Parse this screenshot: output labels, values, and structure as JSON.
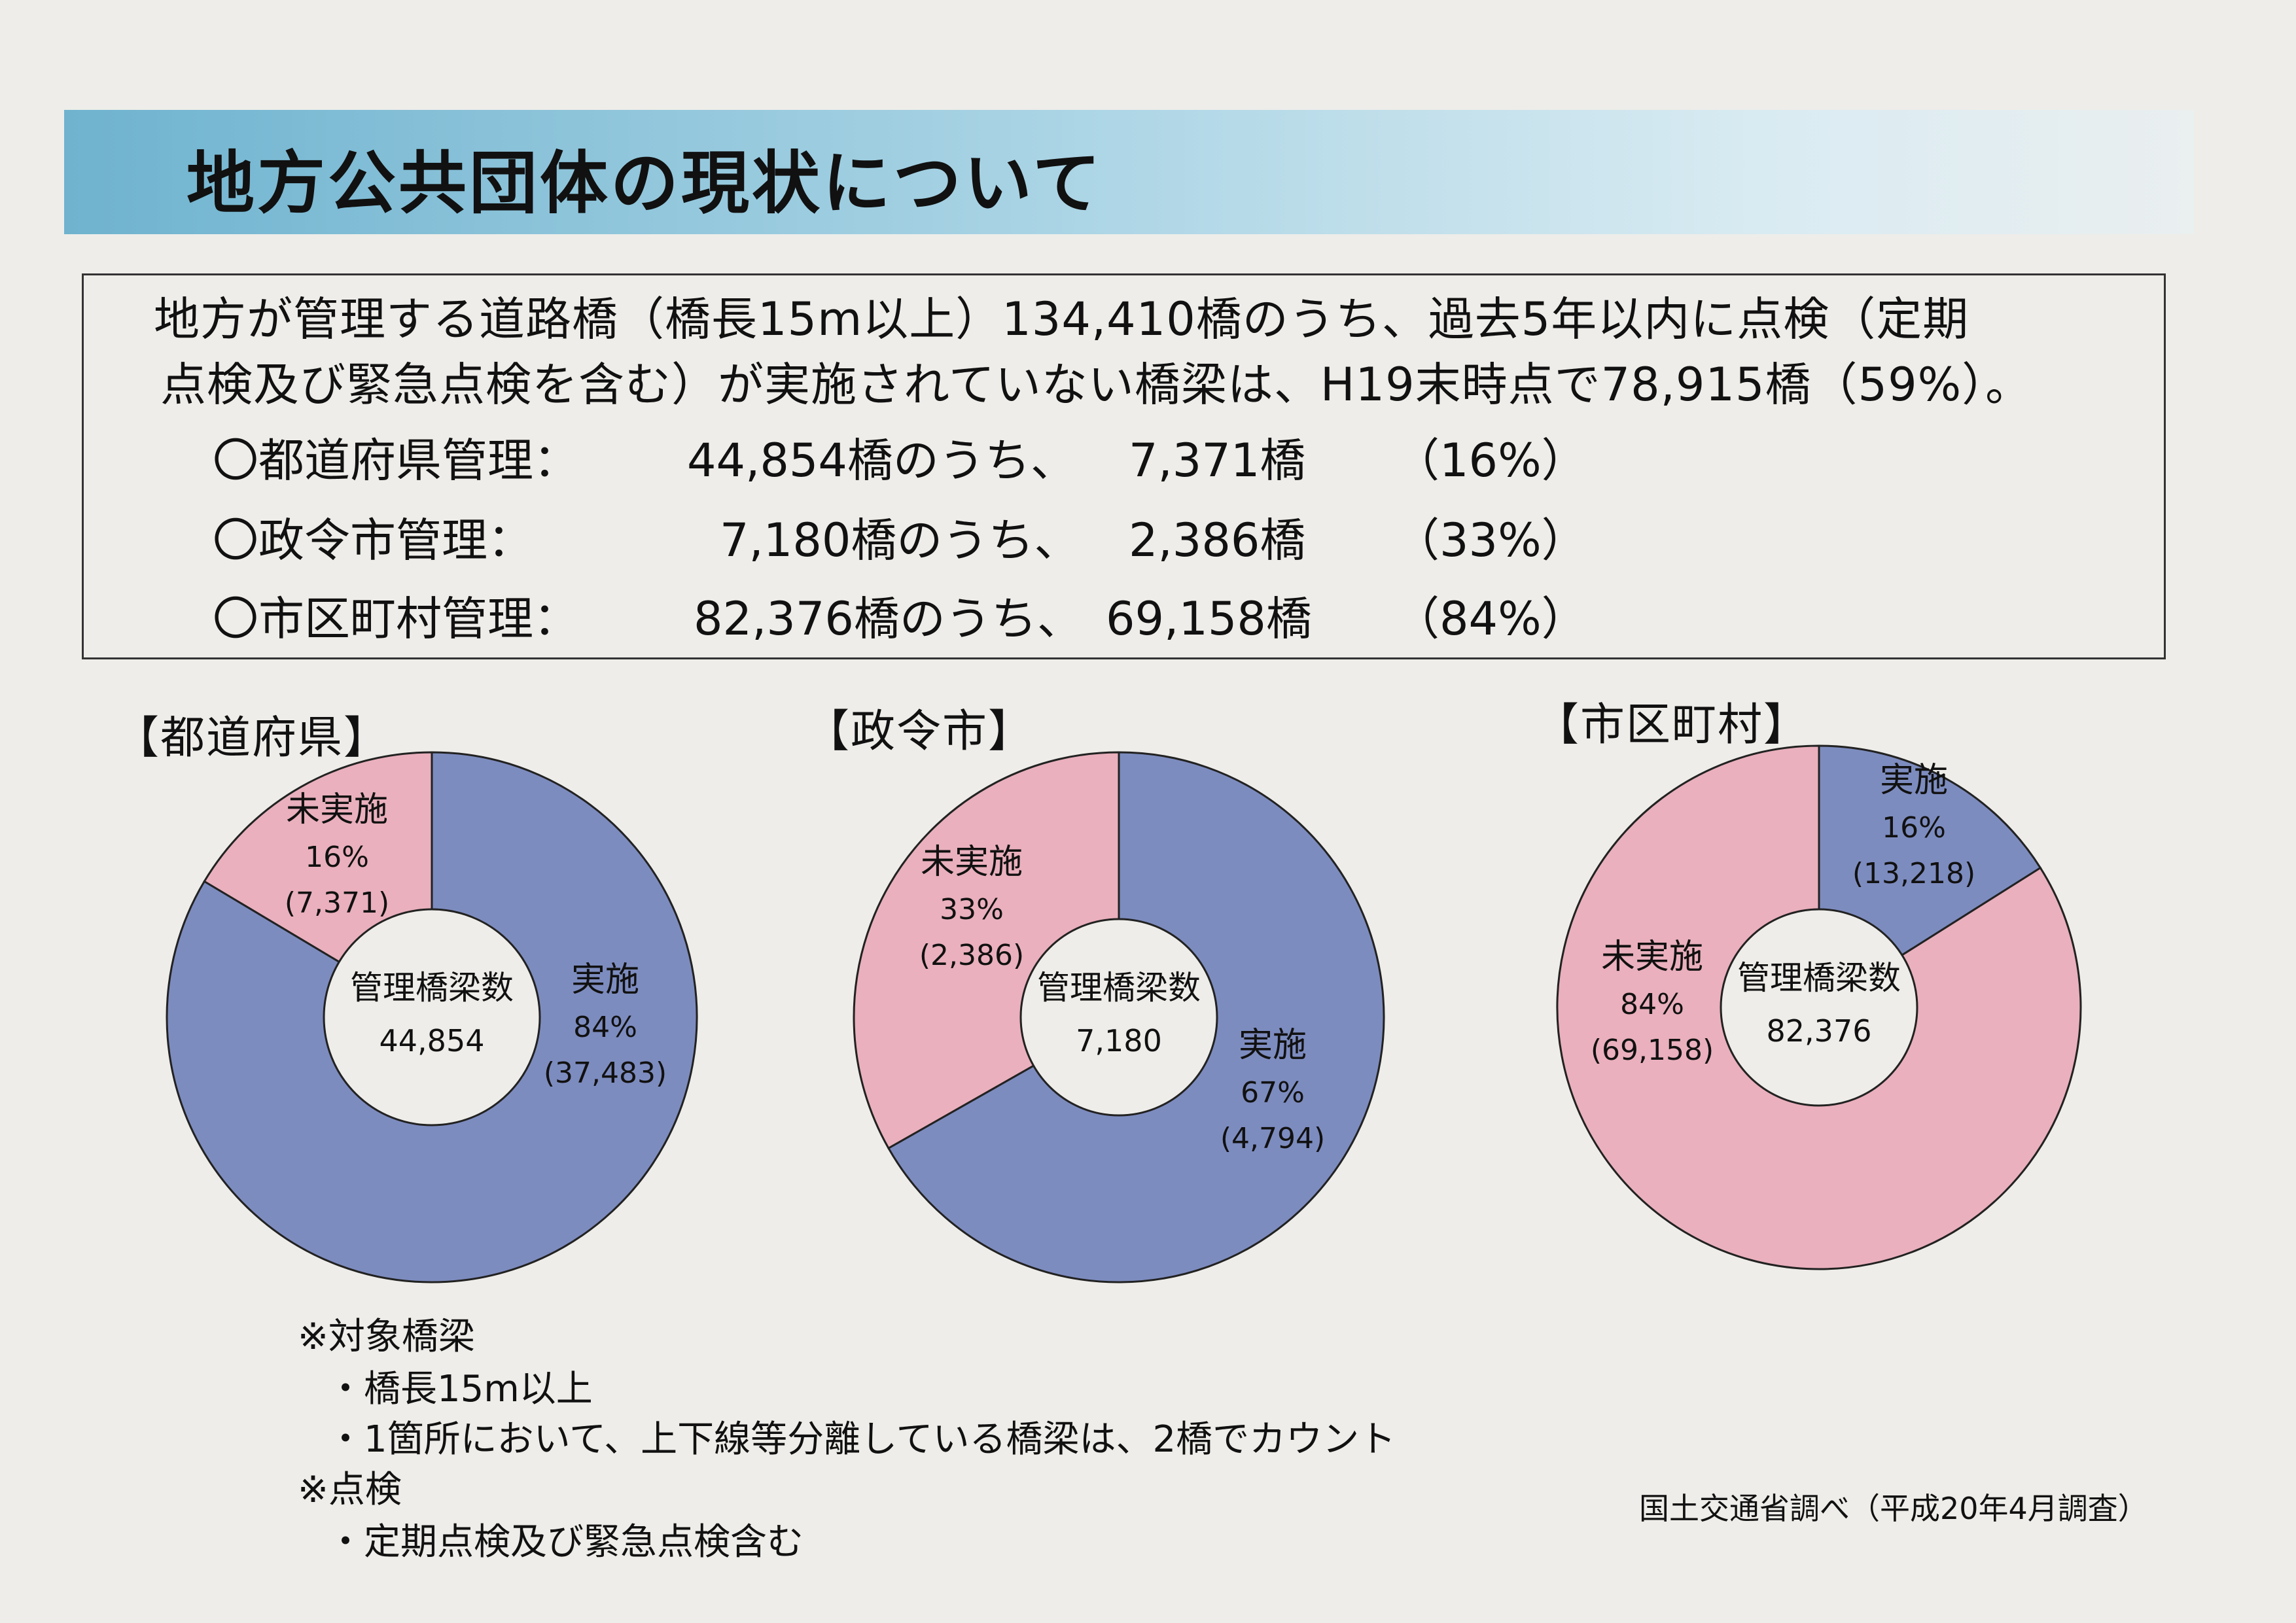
{
  "page": {
    "title": "地方公共団体の現状について",
    "summary_line1": "地方が管理する道路橋（橋長15m以上）134,410橋のうち、過去5年以内に点検（定期",
    "summary_line2": "点検及び緊急点検を含む）が実施されていない橋梁は、H19末時点で78,915橋（59%）。",
    "rows": [
      {
        "label": "〇都道府県管理：",
        "total": "44,854橋のうち、",
        "count": "7,371橋",
        "pct": "（16%）"
      },
      {
        "label": "〇政令市管理：",
        "total": "7,180橋のうち、",
        "count": "2,386橋",
        "pct": "（33%）"
      },
      {
        "label": "〇市区町村管理：",
        "total": "82,376橋のうち、",
        "count": "69,158橋",
        "pct": "（84%）"
      }
    ],
    "notes": [
      "※対象橋梁",
      "・橋長15m以上",
      "・1箇所において、上下線等分離している橋梁は、2橋でカウント",
      "※点検",
      "・定期点検及び緊急点検含む"
    ],
    "source": "国土交通省調べ（平成20年4月調査）"
  },
  "colors": {
    "implemented": "#7d8cbf",
    "not_implemented": "#eab0bd",
    "title_band": "#7fbcd5"
  },
  "chart_data": [
    {
      "type": "pie",
      "title": "【都道府県】",
      "center_label": "管理橋梁数",
      "center_value": "44,854",
      "slices": [
        {
          "label": "未実施",
          "percent": "16%",
          "count": "(7,371)",
          "value": 7371
        },
        {
          "label": "実施",
          "percent": "84%",
          "count": "(37,483)",
          "value": 37483
        }
      ]
    },
    {
      "type": "pie",
      "title": "【政令市】",
      "center_label": "管理橋梁数",
      "center_value": "7,180",
      "slices": [
        {
          "label": "未実施",
          "percent": "33%",
          "count": "(2,386)",
          "value": 2386
        },
        {
          "label": "実施",
          "percent": "67%",
          "count": "(4,794)",
          "value": 4794
        }
      ]
    },
    {
      "type": "pie",
      "title": "【市区町村】",
      "center_label": "管理橋梁数",
      "center_value": "82,376",
      "slices": [
        {
          "label": "実施",
          "percent": "16%",
          "count": "(13,218)",
          "value": 13218
        },
        {
          "label": "未実施",
          "percent": "84%",
          "count": "(69,158)",
          "value": 69158
        }
      ]
    }
  ]
}
